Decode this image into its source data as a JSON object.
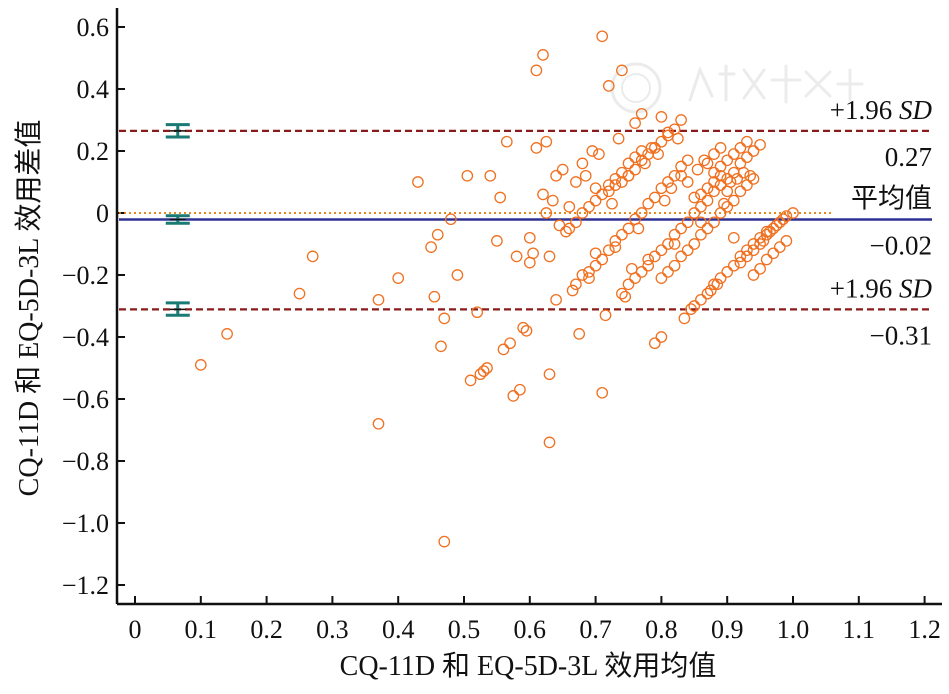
{
  "chart_data": {
    "type": "scatter",
    "title": "",
    "xlabel": "CQ-11D 和 EQ-5D-3L 效用均值",
    "ylabel": "CQ-11D 和 EQ-5D-3L 效用差值",
    "xlim": [
      -0.02,
      1.22
    ],
    "ylim": [
      -1.26,
      0.66
    ],
    "x_ticks": [
      "0",
      "0.1",
      "0.2",
      "0.3",
      "0.4",
      "0.5",
      "0.6",
      "0.7",
      "0.8",
      "0.9",
      "1.0",
      "1.1",
      "1.2"
    ],
    "y_ticks": [
      "0.6",
      "0.4",
      "0.2",
      "0",
      "−0.2",
      "−0.4",
      "−0.6",
      "−0.8",
      "−1.0",
      "−1.2"
    ],
    "grid": false,
    "legend": "none",
    "reference_lines": [
      {
        "id": "upper",
        "y": 0.265,
        "style": "dashed",
        "color": "#8b1a1a",
        "label": "+1.96 SD",
        "value_label": "0.27",
        "ci_low": 0.245,
        "ci_high": 0.285
      },
      {
        "id": "mean",
        "y": -0.021,
        "style": "solid",
        "color": "#2e3192",
        "label": "平均值",
        "value_label": "−0.02",
        "ci_low": -0.033,
        "ci_high": -0.009
      },
      {
        "id": "lower",
        "y": -0.311,
        "style": "dashed",
        "color": "#8b1a1a",
        "label": "+1.96 SD",
        "value_label": "−0.31",
        "ci_low": -0.33,
        "ci_high": -0.29
      },
      {
        "id": "zero",
        "y": 0.0,
        "style": "dotted",
        "color": "#e07b00"
      }
    ],
    "ci_marker_x": 0.065,
    "ci_marker_color": "#1a7a74",
    "point_color": "#f07020",
    "points": [
      [
        0.1,
        -0.49
      ],
      [
        0.14,
        -0.39
      ],
      [
        0.25,
        -0.26
      ],
      [
        0.27,
        -0.14
      ],
      [
        0.37,
        -0.28
      ],
      [
        0.37,
        -0.68
      ],
      [
        0.4,
        -0.21
      ],
      [
        0.43,
        0.1
      ],
      [
        0.45,
        -0.11
      ],
      [
        0.455,
        -0.27
      ],
      [
        0.46,
        -0.07
      ],
      [
        0.465,
        -0.43
      ],
      [
        0.47,
        -0.34
      ],
      [
        0.47,
        -1.06
      ],
      [
        0.48,
        -0.02
      ],
      [
        0.49,
        -0.2
      ],
      [
        0.505,
        0.12
      ],
      [
        0.51,
        -0.54
      ],
      [
        0.52,
        -0.32
      ],
      [
        0.525,
        -0.52
      ],
      [
        0.53,
        -0.51
      ],
      [
        0.535,
        -0.5
      ],
      [
        0.54,
        0.12
      ],
      [
        0.55,
        -0.09
      ],
      [
        0.555,
        0.05
      ],
      [
        0.56,
        -0.44
      ],
      [
        0.565,
        0.23
      ],
      [
        0.57,
        -0.42
      ],
      [
        0.575,
        -0.59
      ],
      [
        0.58,
        -0.14
      ],
      [
        0.585,
        -0.57
      ],
      [
        0.59,
        -0.37
      ],
      [
        0.595,
        -0.38
      ],
      [
        0.6,
        -0.08
      ],
      [
        0.6,
        -0.16
      ],
      [
        0.605,
        -0.13
      ],
      [
        0.61,
        0.21
      ],
      [
        0.61,
        0.46
      ],
      [
        0.62,
        0.51
      ],
      [
        0.62,
        0.06
      ],
      [
        0.625,
        0.23
      ],
      [
        0.625,
        0.0
      ],
      [
        0.63,
        -0.14
      ],
      [
        0.63,
        -0.52
      ],
      [
        0.63,
        -0.74
      ],
      [
        0.635,
        0.04
      ],
      [
        0.64,
        -0.28
      ],
      [
        0.64,
        0.12
      ],
      [
        0.645,
        -0.04
      ],
      [
        0.65,
        0.14
      ],
      [
        0.655,
        -0.06
      ],
      [
        0.66,
        0.02
      ],
      [
        0.665,
        -0.25
      ],
      [
        0.67,
        -0.23
      ],
      [
        0.67,
        0.1
      ],
      [
        0.675,
        -0.39
      ],
      [
        0.68,
        -0.2
      ],
      [
        0.68,
        0.16
      ],
      [
        0.685,
        0.12
      ],
      [
        0.69,
        -0.19
      ],
      [
        0.695,
        0.2
      ],
      [
        0.7,
        -0.13
      ],
      [
        0.7,
        0.08
      ],
      [
        0.705,
        0.19
      ],
      [
        0.71,
        0.57
      ],
      [
        0.71,
        -0.58
      ],
      [
        0.715,
        -0.33
      ],
      [
        0.72,
        0.41
      ],
      [
        0.725,
        0.03
      ],
      [
        0.73,
        -0.11
      ],
      [
        0.735,
        0.24
      ],
      [
        0.74,
        0.46
      ],
      [
        0.745,
        -0.27
      ],
      [
        0.75,
        0.12
      ],
      [
        0.755,
        -0.18
      ],
      [
        0.76,
        0.29
      ],
      [
        0.765,
        -0.05
      ],
      [
        0.77,
        0.32
      ],
      [
        0.775,
        0.16
      ],
      [
        0.78,
        -0.15
      ],
      [
        0.785,
        0.21
      ],
      [
        0.79,
        -0.42
      ],
      [
        0.795,
        0.19
      ],
      [
        0.8,
        0.31
      ],
      [
        0.8,
        -0.4
      ],
      [
        0.805,
        0.04
      ],
      [
        0.81,
        0.26
      ],
      [
        0.815,
        0.08
      ],
      [
        0.82,
        -0.1
      ],
      [
        0.825,
        0.24
      ],
      [
        0.83,
        0.12
      ],
      [
        0.835,
        -0.34
      ],
      [
        0.84,
        0.1
      ],
      [
        0.845,
        -0.31
      ],
      [
        0.85,
        0.05
      ],
      [
        0.855,
        0.14
      ],
      [
        0.86,
        -0.03
      ],
      [
        0.865,
        0.17
      ],
      [
        0.87,
        0.16
      ],
      [
        0.875,
        -0.25
      ],
      [
        0.88,
        0.19
      ],
      [
        0.885,
        -0.23
      ],
      [
        0.89,
        0.21
      ],
      [
        0.895,
        0.03
      ],
      [
        0.9,
        0.07
      ],
      [
        0.905,
        0.1
      ],
      [
        0.91,
        -0.08
      ],
      [
        0.915,
        0.11
      ],
      [
        0.92,
        -0.16
      ],
      [
        0.925,
        0.13
      ],
      [
        0.93,
        -0.14
      ],
      [
        0.935,
        0.12
      ],
      [
        0.94,
        -0.12
      ],
      [
        0.95,
        -0.1
      ],
      [
        0.955,
        -0.09
      ],
      [
        0.96,
        -0.07
      ],
      [
        0.965,
        -0.06
      ],
      [
        0.97,
        -0.05
      ],
      [
        0.975,
        -0.04
      ],
      [
        0.98,
        -0.03
      ],
      [
        0.985,
        -0.02
      ],
      [
        0.99,
        -0.01
      ],
      [
        1.0,
        0.0
      ],
      [
        0.69,
        -0.21
      ],
      [
        0.7,
        -0.17
      ],
      [
        0.71,
        -0.15
      ],
      [
        0.72,
        -0.12
      ],
      [
        0.73,
        -0.09
      ],
      [
        0.74,
        -0.07
      ],
      [
        0.75,
        -0.05
      ],
      [
        0.76,
        -0.02
      ],
      [
        0.77,
        0.0
      ],
      [
        0.78,
        0.03
      ],
      [
        0.79,
        0.05
      ],
      [
        0.8,
        0.08
      ],
      [
        0.81,
        0.1
      ],
      [
        0.82,
        0.12
      ],
      [
        0.83,
        0.15
      ],
      [
        0.84,
        0.17
      ],
      [
        0.72,
        0.07
      ],
      [
        0.73,
        0.09
      ],
      [
        0.74,
        0.1
      ],
      [
        0.75,
        0.12
      ],
      [
        0.76,
        0.14
      ],
      [
        0.77,
        0.17
      ],
      [
        0.78,
        0.19
      ],
      [
        0.79,
        0.21
      ],
      [
        0.8,
        0.23
      ],
      [
        0.81,
        0.25
      ],
      [
        0.82,
        0.27
      ],
      [
        0.83,
        0.3
      ],
      [
        0.66,
        -0.05
      ],
      [
        0.67,
        -0.03
      ],
      [
        0.68,
        0.0
      ],
      [
        0.69,
        0.02
      ],
      [
        0.7,
        0.04
      ],
      [
        0.71,
        0.06
      ],
      [
        0.72,
        0.09
      ],
      [
        0.73,
        0.11
      ],
      [
        0.74,
        0.13
      ],
      [
        0.75,
        0.16
      ],
      [
        0.76,
        0.18
      ],
      [
        0.77,
        0.2
      ],
      [
        0.74,
        -0.26
      ],
      [
        0.75,
        -0.23
      ],
      [
        0.76,
        -0.21
      ],
      [
        0.77,
        -0.19
      ],
      [
        0.78,
        -0.17
      ],
      [
        0.79,
        -0.14
      ],
      [
        0.8,
        -0.12
      ],
      [
        0.81,
        -0.1
      ],
      [
        0.82,
        -0.07
      ],
      [
        0.83,
        -0.05
      ],
      [
        0.84,
        -0.03
      ],
      [
        0.85,
        0.0
      ],
      [
        0.86,
        0.02
      ],
      [
        0.87,
        0.04
      ],
      [
        0.88,
        0.07
      ],
      [
        0.89,
        0.09
      ],
      [
        0.9,
        0.11
      ],
      [
        0.91,
        0.13
      ],
      [
        0.92,
        0.16
      ],
      [
        0.93,
        0.18
      ],
      [
        0.94,
        0.2
      ],
      [
        0.95,
        0.22
      ],
      [
        0.8,
        -0.21
      ],
      [
        0.81,
        -0.19
      ],
      [
        0.82,
        -0.17
      ],
      [
        0.83,
        -0.14
      ],
      [
        0.84,
        -0.12
      ],
      [
        0.85,
        -0.1
      ],
      [
        0.86,
        -0.07
      ],
      [
        0.87,
        -0.05
      ],
      [
        0.88,
        -0.03
      ],
      [
        0.89,
        0.0
      ],
      [
        0.9,
        0.02
      ],
      [
        0.91,
        0.04
      ],
      [
        0.92,
        0.07
      ],
      [
        0.93,
        0.09
      ],
      [
        0.94,
        0.11
      ],
      [
        0.85,
        -0.3
      ],
      [
        0.86,
        -0.28
      ],
      [
        0.87,
        -0.26
      ],
      [
        0.88,
        -0.23
      ],
      [
        0.89,
        -0.21
      ],
      [
        0.9,
        -0.19
      ],
      [
        0.91,
        -0.17
      ],
      [
        0.92,
        -0.14
      ],
      [
        0.93,
        -0.12
      ],
      [
        0.94,
        -0.1
      ],
      [
        0.95,
        -0.08
      ],
      [
        0.96,
        -0.06
      ],
      [
        0.88,
        0.13
      ],
      [
        0.89,
        0.15
      ],
      [
        0.9,
        0.17
      ],
      [
        0.91,
        0.19
      ],
      [
        0.92,
        0.21
      ],
      [
        0.93,
        0.23
      ],
      [
        0.86,
        0.06
      ],
      [
        0.87,
        0.08
      ],
      [
        0.88,
        0.1
      ],
      [
        0.89,
        0.12
      ],
      [
        0.94,
        -0.2
      ],
      [
        0.95,
        -0.18
      ],
      [
        0.96,
        -0.15
      ],
      [
        0.97,
        -0.13
      ],
      [
        0.98,
        -0.11
      ],
      [
        0.99,
        -0.09
      ]
    ]
  }
}
